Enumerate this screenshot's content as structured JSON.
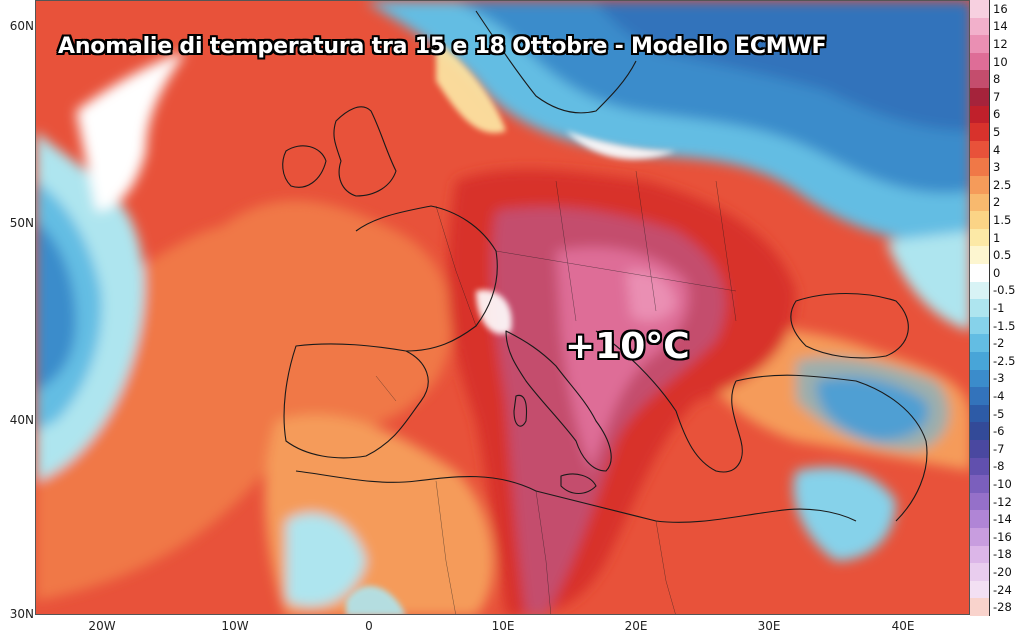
{
  "map": {
    "title": "Anomalie di temperatura tra 15 e 18 Ottobre - Modello ECMWF",
    "peak_label": "+10°C",
    "lat_labels": [
      "60N",
      "50N",
      "40N",
      "30N"
    ],
    "lon_labels": [
      "20W",
      "10W",
      "0",
      "10E",
      "20E",
      "30E",
      "40E"
    ]
  },
  "legend": {
    "levels": [
      {
        "label": "16",
        "color": "#f7d0e0"
      },
      {
        "label": "14",
        "color": "#f2b0cb"
      },
      {
        "label": "12",
        "color": "#ea8fb3"
      },
      {
        "label": "10",
        "color": "#de6d97"
      },
      {
        "label": "8",
        "color": "#c44d6d"
      },
      {
        "label": "7",
        "color": "#a5233b"
      },
      {
        "label": "6",
        "color": "#c0202b"
      },
      {
        "label": "5",
        "color": "#d8322c"
      },
      {
        "label": "4",
        "color": "#e8523a"
      },
      {
        "label": "3",
        "color": "#f07847"
      },
      {
        "label": "2.5",
        "color": "#f59b5a"
      },
      {
        "label": "2",
        "color": "#f8b96e"
      },
      {
        "label": "1.5",
        "color": "#fbd486"
      },
      {
        "label": "1",
        "color": "#fce9a6"
      },
      {
        "label": "0.5",
        "color": "#fdf6d0"
      },
      {
        "label": "0",
        "color": "#ffffff"
      },
      {
        "label": "-0.5",
        "color": "#d8f3f5"
      },
      {
        "label": "-1",
        "color": "#aee5ef"
      },
      {
        "label": "-1.5",
        "color": "#86d2ea"
      },
      {
        "label": "-2",
        "color": "#63bde3"
      },
      {
        "label": "-2.5",
        "color": "#48a5d8"
      },
      {
        "label": "-3",
        "color": "#3b8ccb"
      },
      {
        "label": "-4",
        "color": "#3373bb"
      },
      {
        "label": "-5",
        "color": "#2d5ba7"
      },
      {
        "label": "-6",
        "color": "#334a98"
      },
      {
        "label": "-7",
        "color": "#4a48a0"
      },
      {
        "label": "-8",
        "color": "#6150ae"
      },
      {
        "label": "-10",
        "color": "#7b5fbd"
      },
      {
        "label": "-12",
        "color": "#9570c9"
      },
      {
        "label": "-14",
        "color": "#b085d6"
      },
      {
        "label": "-16",
        "color": "#c89ddf"
      },
      {
        "label": "-18",
        "color": "#dcb6e8"
      },
      {
        "label": "-20",
        "color": "#e9cdee"
      },
      {
        "label": "-24",
        "color": "#f3e0f3"
      },
      {
        "label": "-28",
        "color": "#f9d3cc"
      }
    ]
  },
  "colors": {
    "deep_red": "#c0202b",
    "red": "#d8322c",
    "orange_red": "#e8523a",
    "orange": "#f07847",
    "light_orange": "#f59b5a",
    "yellow": "#fce9a6",
    "white": "#ffffff",
    "pale_blue": "#aee5ef",
    "light_blue": "#63bde3",
    "blue": "#3373bb",
    "dark_blue": "#2d5ba7",
    "mauve": "#c44d6d",
    "pink": "#de6d97",
    "light_pink": "#ea8fb3",
    "borders": "#1a1a1a"
  }
}
